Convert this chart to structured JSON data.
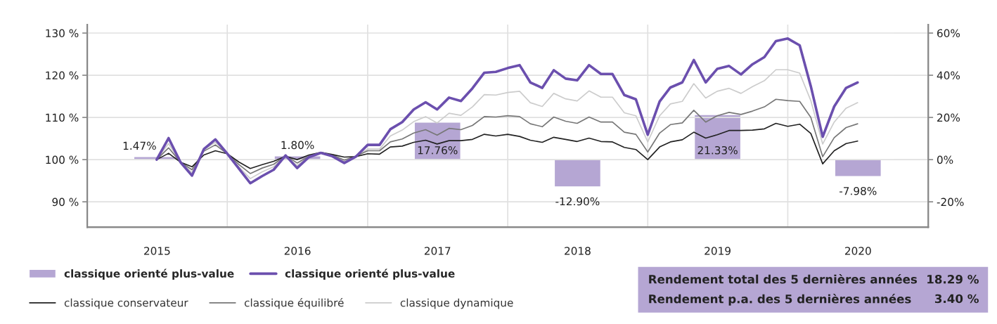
{
  "chart_data": {
    "type": "line",
    "x": [
      "2015-07",
      "2015-08",
      "2015-09",
      "2015-10",
      "2015-11",
      "2015-12",
      "2016-01",
      "2016-02",
      "2016-03",
      "2016-04",
      "2016-05",
      "2016-06",
      "2016-07",
      "2016-08",
      "2016-09",
      "2016-10",
      "2016-11",
      "2016-12",
      "2017-01",
      "2017-02",
      "2017-03",
      "2017-04",
      "2017-05",
      "2017-06",
      "2017-07",
      "2017-08",
      "2017-09",
      "2017-10",
      "2017-11",
      "2017-12",
      "2018-01",
      "2018-02",
      "2018-03",
      "2018-04",
      "2018-05",
      "2018-06",
      "2018-07",
      "2018-08",
      "2018-09",
      "2018-10",
      "2018-11",
      "2018-12",
      "2019-01",
      "2019-02",
      "2019-03",
      "2019-04",
      "2019-05",
      "2019-06",
      "2019-07",
      "2019-08",
      "2019-09",
      "2019-10",
      "2019-11",
      "2019-12",
      "2020-01",
      "2020-02",
      "2020-03",
      "2020-04",
      "2020-05",
      "2020-06",
      "2020-07"
    ],
    "xlim": [
      "2015-01-01",
      "2021-01-01"
    ],
    "xticks": [
      {
        "value": "2015-01-01",
        "label": null
      },
      {
        "value": "2015-07-02",
        "label": "2015"
      },
      {
        "value": "2016-01-01",
        "label": null
      },
      {
        "value": "2016-07-02",
        "label": "2016"
      },
      {
        "value": "2017-01-01",
        "label": null
      },
      {
        "value": "2017-07-02",
        "label": "2017"
      },
      {
        "value": "2018-01-01",
        "label": null
      },
      {
        "value": "2018-07-02",
        "label": "2018"
      },
      {
        "value": "2019-01-01",
        "label": null
      },
      {
        "value": "2019-07-02",
        "label": "2019"
      },
      {
        "value": "2020-01-01",
        "label": null
      },
      {
        "value": "2020-07-02",
        "label": "2020"
      },
      {
        "value": "2021-01-01",
        "label": null
      }
    ],
    "ylim": [
      84,
      132
    ],
    "yticks": [
      {
        "value": 90,
        "label": "90 %"
      },
      {
        "value": 100,
        "label": "100 %"
      },
      {
        "value": 110,
        "label": "110 %"
      },
      {
        "value": 120,
        "label": "120 %"
      },
      {
        "value": 130,
        "label": "130 %"
      }
    ],
    "y2lim": [
      -32,
      64
    ],
    "y2ticks": [
      {
        "value": -20,
        "label": "-20%"
      },
      {
        "value": 0,
        "label": "0%"
      },
      {
        "value": 20,
        "label": "20%"
      },
      {
        "value": 40,
        "label": "40%"
      },
      {
        "value": 60,
        "label": "60%"
      }
    ],
    "grid": true,
    "legend": "bottom",
    "annotations": [
      "Rendement total des 5 dernières années",
      "18.29 %",
      "Rendement p.a. des 5 dernières années",
      "3.40 %"
    ],
    "series": [
      {
        "type": "bar",
        "axis": "y2",
        "name": "classique orienté plus-value",
        "color": "#b5a6d3",
        "x": [
          "2015-07-02",
          "2016-07-02",
          "2017-07-02",
          "2018-07-02",
          "2019-07-02",
          "2020-07-02"
        ],
        "values": [
          1.47,
          1.8,
          17.76,
          -12.9,
          21.33,
          -7.98
        ],
        "value_labels": [
          "1.47%",
          "1.80%",
          "17.76%",
          "-12.90%",
          "21.33%",
          "-7.98%"
        ]
      },
      {
        "name": "classique orienté plus-value",
        "color": "#6b4fae",
        "values": [
          100,
          105.1,
          99.4,
          96.2,
          102.5,
          104.8,
          101.4,
          97.8,
          94.4,
          96.1,
          97.6,
          101.0,
          98.0,
          100.6,
          101.6,
          100.8,
          99.2,
          100.7,
          103.5,
          103.5,
          107.2,
          108.9,
          111.9,
          113.6,
          111.9,
          114.7,
          113.9,
          116.9,
          120.6,
          120.8,
          121.7,
          122.4,
          118.3,
          117.0,
          121.2,
          119.2,
          118.8,
          122.4,
          120.3,
          120.3,
          115.3,
          114.3,
          105.9,
          113.8,
          117.1,
          118.3,
          123.6,
          118.3,
          121.5,
          122.2,
          120.2,
          122.6,
          124.3,
          128.1,
          128.7,
          127.1,
          117.4,
          105.4,
          112.6,
          117.0,
          118.3
        ]
      },
      {
        "name": "classique conservateur",
        "color": "#222222",
        "values": [
          100,
          101.5,
          99.4,
          98.3,
          101.1,
          102.1,
          101.4,
          99.4,
          97.9,
          98.8,
          99.6,
          100.8,
          100.0,
          101.1,
          101.7,
          101.2,
          100.6,
          100.7,
          101.4,
          101.3,
          103.0,
          103.2,
          104.1,
          104.6,
          103.7,
          104.5,
          104.5,
          104.8,
          106.0,
          105.6,
          106.0,
          105.5,
          104.6,
          104.1,
          105.3,
          104.8,
          104.3,
          105.1,
          104.3,
          104.2,
          102.9,
          102.4,
          100.0,
          103.0,
          104.2,
          104.7,
          106.5,
          105.1,
          105.9,
          106.9,
          106.9,
          107.0,
          107.3,
          108.6,
          107.9,
          108.4,
          106.2,
          99.0,
          102.1,
          103.8,
          104.4
        ]
      },
      {
        "name": "classique équilibré",
        "color": "#777777",
        "values": [
          100,
          102.8,
          99.4,
          97.6,
          102.0,
          103.5,
          101.4,
          98.8,
          96.7,
          98.0,
          98.9,
          101.0,
          99.2,
          100.8,
          101.6,
          101.1,
          99.9,
          100.8,
          102.1,
          102.1,
          104.2,
          104.9,
          106.3,
          107.1,
          105.8,
          107.4,
          107.1,
          108.1,
          110.2,
          110.1,
          110.4,
          110.2,
          108.5,
          107.8,
          110.1,
          109.1,
          108.6,
          110.1,
          108.9,
          108.9,
          106.5,
          106.0,
          101.8,
          106.3,
          108.3,
          108.7,
          111.7,
          108.9,
          110.4,
          111.2,
          110.7,
          111.5,
          112.5,
          114.3,
          114.0,
          113.8,
          110.0,
          100.7,
          105.2,
          107.6,
          108.5
        ]
      },
      {
        "name": "classique dynamique",
        "color": "#cccccc",
        "values": [
          100,
          103.8,
          99.4,
          96.9,
          102.4,
          104.1,
          101.4,
          98.2,
          95.5,
          97.1,
          98.3,
          101.0,
          98.6,
          100.7,
          101.6,
          101.0,
          99.6,
          100.7,
          102.5,
          102.5,
          105.6,
          107.0,
          109.0,
          110.2,
          108.7,
          111.0,
          110.5,
          112.5,
          115.4,
          115.3,
          115.9,
          116.2,
          113.5,
          112.6,
          115.7,
          114.4,
          113.9,
          116.3,
          114.8,
          114.8,
          111.1,
          110.4,
          104.2,
          110.4,
          113.2,
          113.8,
          118.0,
          114.6,
          116.2,
          116.9,
          115.7,
          117.3,
          118.7,
          121.3,
          121.3,
          120.5,
          114.0,
          103.7,
          108.9,
          112.2,
          113.5
        ]
      }
    ]
  }
}
